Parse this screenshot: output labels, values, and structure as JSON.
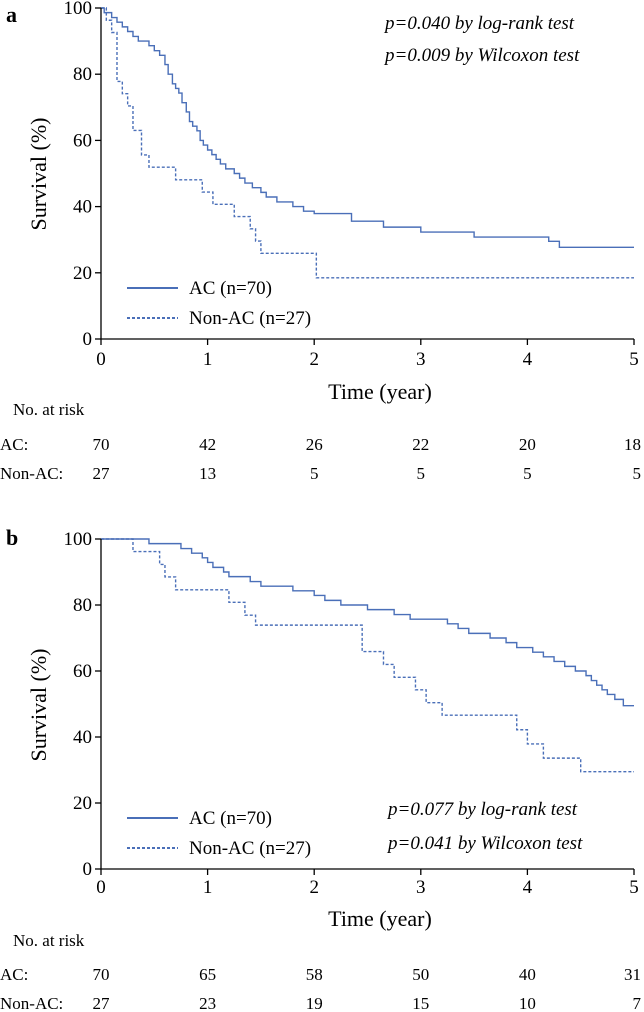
{
  "chart_data": [
    {
      "type": "line",
      "panel": "a",
      "xlabel": "Time (year)",
      "ylabel": "Survival (%)",
      "xlim": [
        0,
        5
      ],
      "ylim": [
        0,
        100
      ],
      "xticks": [
        0,
        1,
        2,
        3,
        4,
        5
      ],
      "yticks": [
        0,
        20,
        40,
        60,
        80,
        100
      ],
      "legend_placement": "bottom-left",
      "annotations": [
        "p=0.040 by log-rank test",
        "p=0.009 by Wilcoxon test"
      ],
      "series": [
        {
          "name": "AC (n=70)",
          "style": "solid",
          "color": "#4a6fb8",
          "points": [
            [
              0,
              100
            ],
            [
              0.03,
              98.6
            ],
            [
              0.1,
              97.1
            ],
            [
              0.15,
              95.7
            ],
            [
              0.2,
              94.3
            ],
            [
              0.25,
              92.9
            ],
            [
              0.3,
              91.4
            ],
            [
              0.35,
              90
            ],
            [
              0.45,
              88.6
            ],
            [
              0.5,
              87.1
            ],
            [
              0.55,
              85.7
            ],
            [
              0.6,
              82.9
            ],
            [
              0.63,
              80
            ],
            [
              0.67,
              77.1
            ],
            [
              0.7,
              75.7
            ],
            [
              0.73,
              74.3
            ],
            [
              0.76,
              71.4
            ],
            [
              0.8,
              68.6
            ],
            [
              0.83,
              65.7
            ],
            [
              0.86,
              64.3
            ],
            [
              0.9,
              62.9
            ],
            [
              0.93,
              60
            ],
            [
              0.96,
              58.6
            ],
            [
              1.0,
              57.1
            ],
            [
              1.04,
              55.7
            ],
            [
              1.08,
              54.3
            ],
            [
              1.12,
              52.9
            ],
            [
              1.17,
              51.4
            ],
            [
              1.25,
              50
            ],
            [
              1.3,
              48.6
            ],
            [
              1.35,
              47.1
            ],
            [
              1.42,
              45.7
            ],
            [
              1.5,
              44.3
            ],
            [
              1.55,
              42.9
            ],
            [
              1.65,
              41.4
            ],
            [
              1.8,
              40
            ],
            [
              1.9,
              38.6
            ],
            [
              2.0,
              37.9
            ],
            [
              2.3,
              37.9
            ],
            [
              2.35,
              35.6
            ],
            [
              2.65,
              33.8
            ],
            [
              3.0,
              32.3
            ],
            [
              3.5,
              30.8
            ],
            [
              4.0,
              30.8
            ],
            [
              4.2,
              29.5
            ],
            [
              4.3,
              27.7
            ],
            [
              5.0,
              27.7
            ]
          ]
        },
        {
          "name": "Non-AC (n=27)",
          "style": "dashed",
          "color": "#4a6fb8",
          "points": [
            [
              0,
              100
            ],
            [
              0.05,
              96.3
            ],
            [
              0.1,
              92.6
            ],
            [
              0.15,
              77.8
            ],
            [
              0.2,
              74.1
            ],
            [
              0.25,
              70.4
            ],
            [
              0.3,
              63
            ],
            [
              0.38,
              55.6
            ],
            [
              0.45,
              51.9
            ],
            [
              0.7,
              48.1
            ],
            [
              0.95,
              44.4
            ],
            [
              1.05,
              40.7
            ],
            [
              1.25,
              37
            ],
            [
              1.4,
              33.3
            ],
            [
              1.45,
              29.6
            ],
            [
              1.5,
              25.9
            ],
            [
              2.0,
              25.9
            ],
            [
              2.02,
              18.5
            ],
            [
              5.0,
              18.5
            ]
          ]
        }
      ],
      "risk_table": {
        "title": "No. at risk",
        "times": [
          "0",
          "1",
          "2",
          "3",
          "4",
          "5"
        ],
        "rows": [
          {
            "label": "AC:",
            "values": [
              "70",
              "42",
              "26",
              "22",
              "20",
              "18"
            ]
          },
          {
            "label": "Non-AC:",
            "values": [
              "27",
              "13",
              "5",
              "5",
              "5",
              "5"
            ]
          }
        ]
      }
    },
    {
      "type": "line",
      "panel": "b",
      "xlabel": "Time (year)",
      "ylabel": "Survival (%)",
      "xlim": [
        0,
        5
      ],
      "ylim": [
        0,
        100
      ],
      "xticks": [
        0,
        1,
        2,
        3,
        4,
        5
      ],
      "yticks": [
        0,
        20,
        40,
        60,
        80,
        100
      ],
      "legend_placement": "bottom-left",
      "annotations": [
        "p=0.077 by log-rank test",
        "p=0.041 by Wilcoxon test"
      ],
      "series": [
        {
          "name": "AC (n=70)",
          "style": "solid",
          "color": "#4a6fb8",
          "points": [
            [
              0,
              100
            ],
            [
              0.45,
              98.6
            ],
            [
              0.75,
              97.1
            ],
            [
              0.85,
              95.7
            ],
            [
              0.95,
              94.3
            ],
            [
              1.0,
              92.9
            ],
            [
              1.05,
              91.4
            ],
            [
              1.15,
              90
            ],
            [
              1.2,
              88.6
            ],
            [
              1.4,
              87.1
            ],
            [
              1.5,
              85.7
            ],
            [
              1.8,
              84.3
            ],
            [
              2.0,
              82.9
            ],
            [
              2.1,
              81.4
            ],
            [
              2.25,
              80
            ],
            [
              2.4,
              80
            ],
            [
              2.5,
              78.6
            ],
            [
              2.75,
              77.1
            ],
            [
              2.9,
              75.7
            ],
            [
              3.25,
              74.3
            ],
            [
              3.35,
              72.9
            ],
            [
              3.45,
              71.4
            ],
            [
              3.65,
              70
            ],
            [
              3.8,
              68.6
            ],
            [
              3.9,
              67.1
            ],
            [
              4.05,
              65.7
            ],
            [
              4.15,
              64.3
            ],
            [
              4.25,
              62.9
            ],
            [
              4.35,
              61.4
            ],
            [
              4.45,
              60
            ],
            [
              4.55,
              58.6
            ],
            [
              4.6,
              57.1
            ],
            [
              4.65,
              55.7
            ],
            [
              4.7,
              54.3
            ],
            [
              4.75,
              52.9
            ],
            [
              4.82,
              51.4
            ],
            [
              4.9,
              49.5
            ],
            [
              5.0,
              49.5
            ]
          ]
        },
        {
          "name": "Non-AC (n=27)",
          "style": "dashed",
          "color": "#4a6fb8",
          "points": [
            [
              0,
              100
            ],
            [
              0.3,
              96.2
            ],
            [
              0.55,
              92.3
            ],
            [
              0.6,
              88.5
            ],
            [
              0.7,
              84.6
            ],
            [
              1.2,
              80.8
            ],
            [
              1.35,
              76.9
            ],
            [
              1.45,
              73.9
            ],
            [
              2.2,
              73.9
            ],
            [
              2.45,
              65.9
            ],
            [
              2.65,
              62
            ],
            [
              2.75,
              58.1
            ],
            [
              2.95,
              54.3
            ],
            [
              3.05,
              50.4
            ],
            [
              3.2,
              46.6
            ],
            [
              3.75,
              46.6
            ],
            [
              3.9,
              42.2
            ],
            [
              4.0,
              37.9
            ],
            [
              4.15,
              33.6
            ],
            [
              4.5,
              29.5
            ],
            [
              5.0,
              29.5
            ]
          ]
        }
      ],
      "risk_table": {
        "title": "No. at risk",
        "times": [
          "0",
          "1",
          "2",
          "3",
          "4",
          "5"
        ],
        "rows": [
          {
            "label": "AC:",
            "values": [
              "70",
              "65",
              "58",
              "50",
              "40",
              "31"
            ]
          },
          {
            "label": "Non-AC:",
            "values": [
              "27",
              "23",
              "19",
              "15",
              "10",
              "7"
            ]
          }
        ]
      }
    }
  ]
}
